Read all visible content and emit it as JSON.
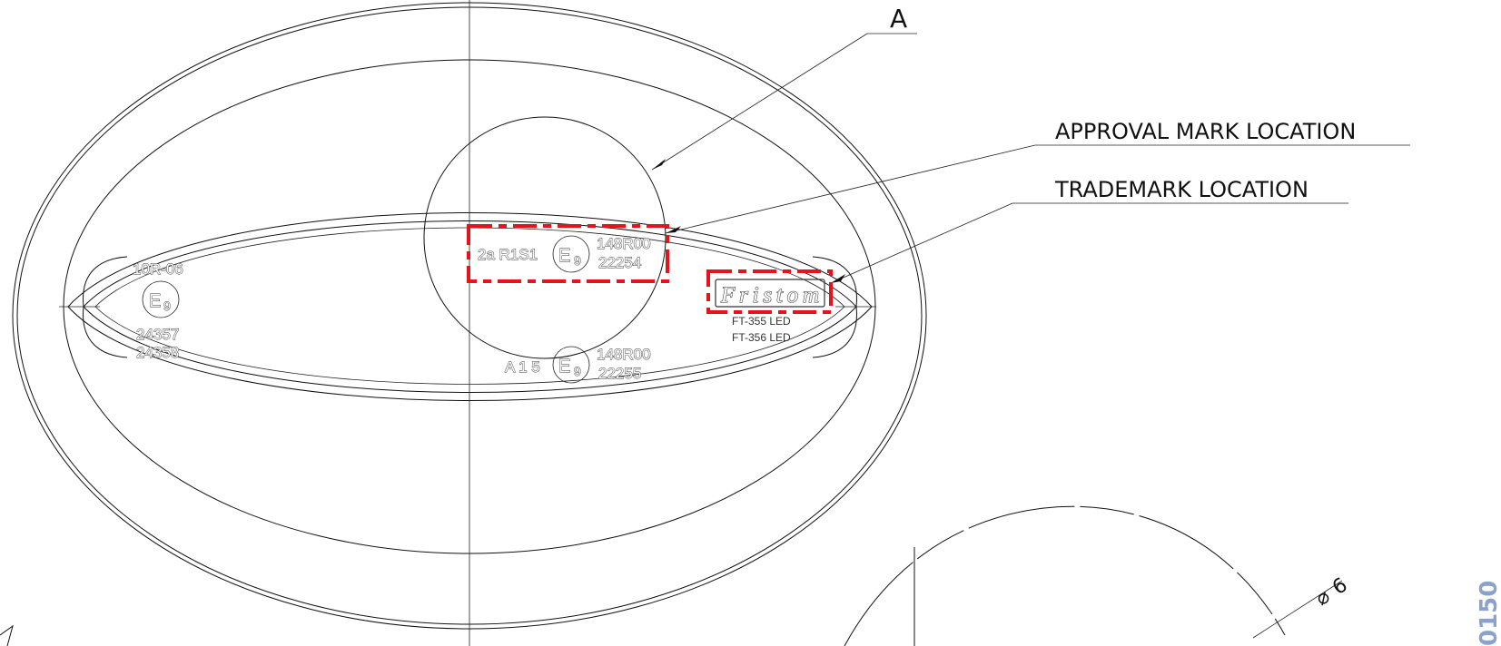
{
  "callouts": {
    "detail_letter": "A",
    "approval_mark_location": "APPROVAL MARK LOCATION",
    "trademark_location": "TRADEMARK LOCATION"
  },
  "left_mark": {
    "reg": "10R-06",
    "e_letter": "E",
    "e_number": "9",
    "num1": "24357",
    "num2": "24358"
  },
  "approval_mark": {
    "prefix": "2a R1S1",
    "e_letter": "E",
    "e_number": "9",
    "reg": "148R00",
    "num": "22254"
  },
  "lower_mark": {
    "prefix": "A 1 5",
    "e_letter": "E",
    "e_number": "9",
    "reg": "148R00",
    "num": "22255"
  },
  "trademark": {
    "logo": "Fristom",
    "model1": "FT-355 LED",
    "model2": "FT-356 LED"
  },
  "dimension": {
    "diameter_symbol": "⌀",
    "value": "6"
  },
  "side_number": "0150",
  "colors": {
    "line": "#111111",
    "highlight_box": "#e3141b",
    "side_number": "#8ba3cc"
  }
}
